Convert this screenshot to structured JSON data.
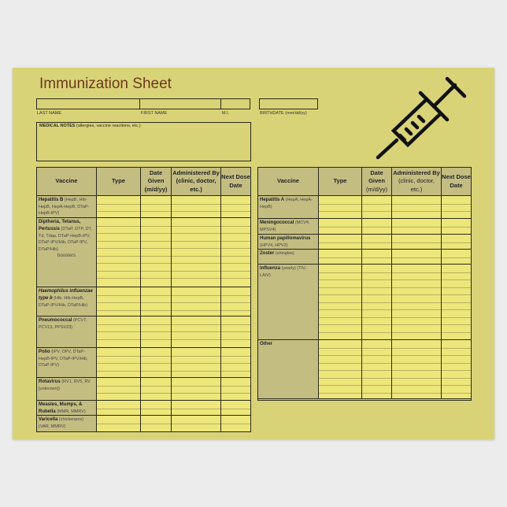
{
  "title": "Immunization Sheet",
  "fields": {
    "last_name": "LAST NAME",
    "first_name": "FIRST NAME",
    "mi": "M.I.",
    "birthdate": "BIRTHDATE (mm/dd/yy)"
  },
  "medical_notes": {
    "label": "MEDICAL NOTES",
    "hint": "(allergies, vaccine reactions, etc.)"
  },
  "headers": [
    {
      "bold": "Vaccine"
    },
    {
      "bold": "Type"
    },
    {
      "bold": "Date Given",
      "sub": "(m/d/yy)"
    },
    {
      "bold": "Administered By",
      "sub": "(clinic, doctor, etc.)"
    },
    {
      "bold": "Next Dose Date"
    }
  ],
  "left_rows": [
    {
      "name": "Hepatitis B",
      "types": "(HepB, Hib-HepB, HepA-HepB, DTaP-HepB-IPV)"
    },
    {
      "name": "Diptheria, Tetanus, Pertussis",
      "types": "(DTaP, DTP, DT, Td, Tdap, DTaP-HepB-IPV, DTaP-IPV/Hib, DTaP-IPV, DTaP/Hib)",
      "extra": "boosters"
    },
    {
      "name": "Haemophilus influenzae type b",
      "types": "(Hib, Hib-HepB, DTaP-IPV/Hib, DTaP/Hib)"
    },
    {
      "name": "Pneumococcal",
      "types": "(PCV7, PCV13, PPSV23)"
    },
    {
      "name": "Polio",
      "types": "(IPV, OPV, DTaP-HepB-IPV, DTaP-IPV/Hib, DTaP-IPV)"
    },
    {
      "name": "Rotavirus",
      "types": "(RV1, RV5, RV [unknown])"
    },
    {
      "name": "Measles, Mumps, & Rubella",
      "types": "(MMR, MMRV)"
    },
    {
      "name": "Varicella",
      "types": "(chickenpox) (VAR, MMRV)"
    }
  ],
  "right_rows": [
    {
      "name": "Hepatitis A",
      "types": "(HepA, HepA-HepB)"
    },
    {
      "name": "Meningococcal",
      "types": "(MCV4, MPSV4)"
    },
    {
      "name": "Human papillomavirus",
      "types": "(HPV4, HPV2)"
    },
    {
      "name": "Zoster",
      "types": "(shingles)"
    },
    {
      "name": "Influenza",
      "types": "(yearly) (TIV, LAIV)"
    },
    {
      "name": "Other",
      "types": ""
    }
  ],
  "colors": {
    "paper": "#d9d378",
    "cell": "#ede67a",
    "label_cell": "#c4bd82",
    "title": "#6a3a1e"
  },
  "icon": "syringe-icon"
}
